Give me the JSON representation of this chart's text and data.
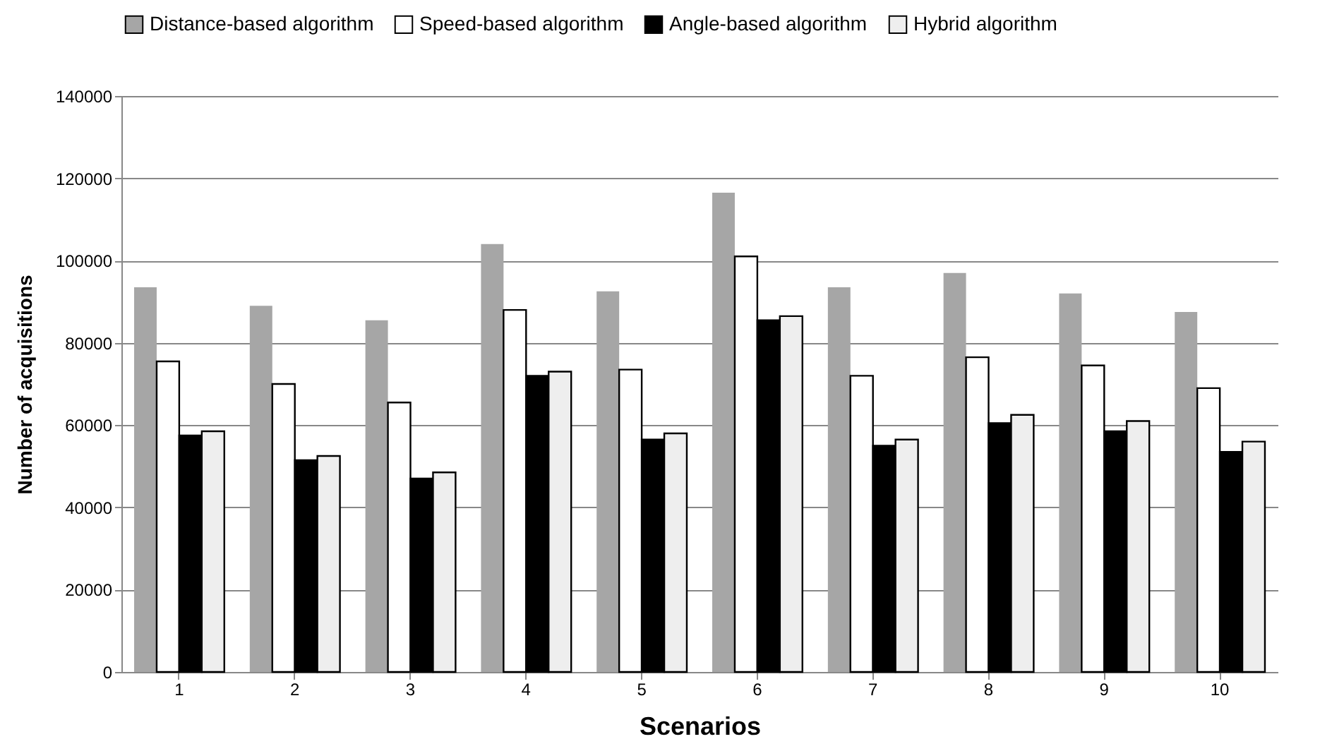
{
  "chart_data": {
    "type": "bar",
    "xlabel": "Scenarios",
    "ylabel": "Number of acquisitions",
    "categories": [
      "1",
      "2",
      "3",
      "4",
      "5",
      "6",
      "7",
      "8",
      "9",
      "10"
    ],
    "series": [
      {
        "name": "Distance-based algorithm",
        "color": "#a6a6a6",
        "values": [
          93500,
          89000,
          85500,
          104000,
          92500,
          116500,
          93500,
          97000,
          92000,
          87500
        ]
      },
      {
        "name": "Speed-based algorithm",
        "color": "#ffffff",
        "values": [
          75500,
          70000,
          65500,
          88000,
          73500,
          101000,
          72000,
          76500,
          74500,
          69000
        ]
      },
      {
        "name": "Angle-based algorithm",
        "color": "#000000",
        "values": [
          57500,
          51500,
          47000,
          72000,
          56500,
          85500,
          55000,
          60500,
          58500,
          53500
        ]
      },
      {
        "name": "Hybrid algorithm",
        "color": "#eeeeee",
        "values": [
          58500,
          52500,
          48500,
          73000,
          58000,
          86500,
          56500,
          62500,
          61000,
          56000
        ]
      }
    ],
    "ylim": [
      0,
      140000
    ],
    "yticks": [
      0,
      20000,
      40000,
      60000,
      80000,
      100000,
      120000,
      140000
    ],
    "grid": "y",
    "legend": "top left"
  }
}
